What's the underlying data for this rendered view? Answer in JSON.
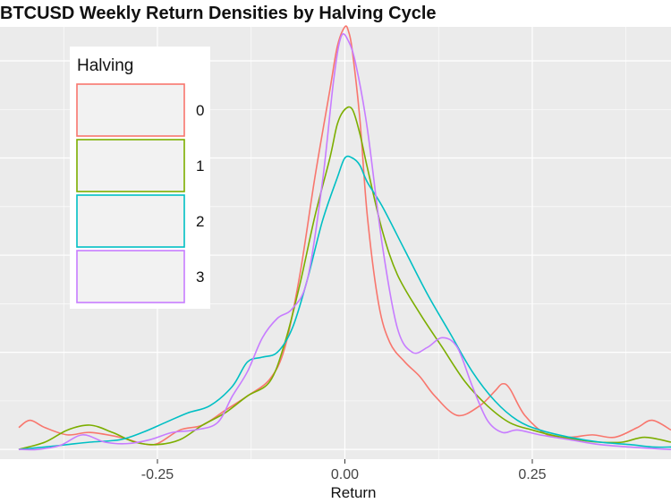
{
  "chart_data": {
    "type": "line",
    "title": "BTCUSD Weekly Return Densities by Halving Cycle",
    "xlabel": "Return",
    "ylabel": "",
    "xlim": [
      -0.46,
      0.435
    ],
    "ylim": [
      -0.2,
      8.7
    ],
    "x_ticks": [
      -0.25,
      0.0,
      0.25
    ],
    "x_tick_labels": [
      "-0.25",
      "0.00",
      "0.25"
    ],
    "grid": true,
    "legend": {
      "title": "Halving",
      "position": "top-left",
      "entries": [
        "0",
        "1",
        "2",
        "3"
      ]
    },
    "colors": {
      "0": "#F8766D",
      "1": "#7CAE00",
      "2": "#00BFC4",
      "3": "#C77CFF"
    },
    "series": [
      {
        "name": "0",
        "x": [
          -0.435,
          -0.42,
          -0.4,
          -0.37,
          -0.34,
          -0.3,
          -0.27,
          -0.25,
          -0.22,
          -0.19,
          -0.16,
          -0.13,
          -0.1,
          -0.08,
          -0.06,
          -0.04,
          -0.02,
          -0.01,
          0.0,
          0.005,
          0.01,
          0.02,
          0.03,
          0.045,
          0.06,
          0.08,
          0.1,
          0.12,
          0.15,
          0.18,
          0.2,
          0.21,
          0.22,
          0.24,
          0.27,
          0.3,
          0.33,
          0.36,
          0.39,
          0.41,
          0.435
        ],
        "y": [
          0.45,
          0.6,
          0.45,
          0.3,
          0.35,
          0.25,
          0.12,
          0.12,
          0.4,
          0.5,
          0.8,
          1.1,
          1.45,
          2.1,
          3.6,
          5.6,
          7.4,
          8.3,
          8.7,
          8.6,
          8.2,
          6.8,
          4.8,
          3.0,
          2.2,
          1.8,
          1.5,
          1.1,
          0.7,
          0.9,
          1.2,
          1.35,
          1.25,
          0.7,
          0.3,
          0.25,
          0.3,
          0.25,
          0.45,
          0.6,
          0.4
        ]
      },
      {
        "name": "1",
        "x": [
          -0.435,
          -0.4,
          -0.37,
          -0.34,
          -0.31,
          -0.28,
          -0.25,
          -0.22,
          -0.19,
          -0.16,
          -0.13,
          -0.1,
          -0.08,
          -0.06,
          -0.04,
          -0.02,
          -0.01,
          0.0,
          0.01,
          0.02,
          0.03,
          0.05,
          0.07,
          0.1,
          0.13,
          0.16,
          0.19,
          0.22,
          0.25,
          0.28,
          0.31,
          0.34,
          0.37,
          0.4,
          0.435
        ],
        "y": [
          0.0,
          0.15,
          0.4,
          0.5,
          0.35,
          0.15,
          0.1,
          0.2,
          0.5,
          0.75,
          1.1,
          1.4,
          2.2,
          3.4,
          4.8,
          6.0,
          6.7,
          7.0,
          7.0,
          6.5,
          5.8,
          4.5,
          3.6,
          2.8,
          2.1,
          1.4,
          0.9,
          0.55,
          0.4,
          0.28,
          0.2,
          0.15,
          0.15,
          0.25,
          0.15
        ]
      },
      {
        "name": "2",
        "x": [
          -0.435,
          -0.4,
          -0.37,
          -0.34,
          -0.3,
          -0.27,
          -0.24,
          -0.21,
          -0.18,
          -0.15,
          -0.13,
          -0.11,
          -0.09,
          -0.07,
          -0.05,
          -0.03,
          -0.01,
          0.0,
          0.01,
          0.02,
          0.03,
          0.05,
          0.08,
          0.11,
          0.14,
          0.17,
          0.2,
          0.23,
          0.26,
          0.3,
          0.34,
          0.38,
          0.41,
          0.435
        ],
        "y": [
          0.0,
          0.05,
          0.1,
          0.15,
          0.2,
          0.35,
          0.55,
          0.75,
          0.9,
          1.3,
          1.8,
          1.9,
          2.0,
          2.5,
          3.5,
          4.7,
          5.6,
          6.0,
          6.0,
          5.85,
          5.5,
          5.0,
          4.1,
          3.2,
          2.4,
          1.6,
          1.0,
          0.6,
          0.4,
          0.25,
          0.15,
          0.1,
          0.05,
          0.05
        ]
      },
      {
        "name": "3",
        "x": [
          -0.435,
          -0.41,
          -0.38,
          -0.35,
          -0.32,
          -0.29,
          -0.26,
          -0.23,
          -0.2,
          -0.17,
          -0.15,
          -0.13,
          -0.11,
          -0.09,
          -0.07,
          -0.05,
          -0.03,
          -0.015,
          -0.005,
          0.005,
          0.015,
          0.03,
          0.05,
          0.07,
          0.09,
          0.11,
          0.13,
          0.15,
          0.17,
          0.19,
          0.21,
          0.23,
          0.26,
          0.3,
          0.34,
          0.38,
          0.41,
          0.435
        ],
        "y": [
          0.0,
          0.0,
          0.08,
          0.3,
          0.15,
          0.12,
          0.2,
          0.35,
          0.4,
          0.55,
          1.1,
          1.6,
          2.3,
          2.7,
          2.9,
          3.5,
          5.5,
          7.6,
          8.5,
          8.4,
          7.9,
          6.6,
          4.2,
          2.5,
          2.0,
          2.1,
          2.3,
          2.1,
          1.3,
          0.6,
          0.35,
          0.4,
          0.3,
          0.2,
          0.1,
          0.05,
          0.02,
          0.0
        ]
      }
    ]
  }
}
